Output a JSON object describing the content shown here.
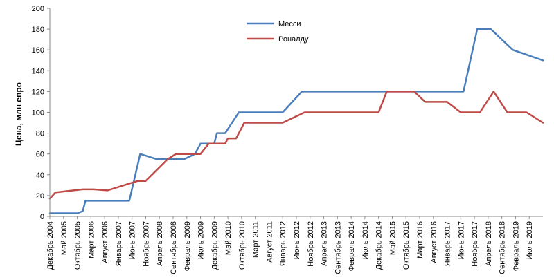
{
  "chart_data": {
    "type": "line",
    "title": "",
    "xlabel": "",
    "ylabel": "Цена, млн евро",
    "ylim": [
      0,
      200
    ],
    "yticks": [
      0,
      20,
      40,
      60,
      80,
      100,
      120,
      140,
      160,
      180,
      200
    ],
    "grid": false,
    "legend_position": "top-center",
    "x_range": [
      "2004-12",
      "2019-12"
    ],
    "x_tick_labels": [
      {
        "date": "2004-12",
        "label": "Декабрь 2004"
      },
      {
        "date": "2005-05",
        "label": "Май 2005"
      },
      {
        "date": "2005-10",
        "label": "Октябрь 2005"
      },
      {
        "date": "2006-03",
        "label": "Март 2006"
      },
      {
        "date": "2006-08",
        "label": "Август 2006"
      },
      {
        "date": "2007-01",
        "label": "Январь 2007"
      },
      {
        "date": "2007-06",
        "label": "Июнь 2007"
      },
      {
        "date": "2007-11",
        "label": "Ноябрь 2007"
      },
      {
        "date": "2008-04",
        "label": "Апрель 2008"
      },
      {
        "date": "2008-09",
        "label": "Сентябрь 2008"
      },
      {
        "date": "2009-02",
        "label": "Февраль 2009"
      },
      {
        "date": "2009-07",
        "label": "Июль 2009"
      },
      {
        "date": "2009-12",
        "label": "Декабрь 2009"
      },
      {
        "date": "2010-05",
        "label": "Май 2010"
      },
      {
        "date": "2010-10",
        "label": "Октябрь 2010"
      },
      {
        "date": "2011-03",
        "label": "Март 2011"
      },
      {
        "date": "2011-08",
        "label": "Август 2011"
      },
      {
        "date": "2012-01",
        "label": "Январь 2012"
      },
      {
        "date": "2012-06",
        "label": "Июнь 2012"
      },
      {
        "date": "2012-11",
        "label": "Ноябрь 2012"
      },
      {
        "date": "2013-04",
        "label": "Апрель 2013"
      },
      {
        "date": "2013-09",
        "label": "Сентябрь 2013"
      },
      {
        "date": "2014-02",
        "label": "Февраль 2014"
      },
      {
        "date": "2014-07",
        "label": "Июль 2014"
      },
      {
        "date": "2014-12",
        "label": "Декабрь 2014"
      },
      {
        "date": "2015-05",
        "label": "Май 2015"
      },
      {
        "date": "2015-10",
        "label": "Октябрь 2015"
      },
      {
        "date": "2016-03",
        "label": "Март 2016"
      },
      {
        "date": "2016-08",
        "label": "Август 2016"
      },
      {
        "date": "2017-01",
        "label": "Январь 2017"
      },
      {
        "date": "2017-06",
        "label": "Июнь 2017"
      },
      {
        "date": "2017-11",
        "label": "Ноябрь 2017"
      },
      {
        "date": "2018-04",
        "label": "Апрель 2018"
      },
      {
        "date": "2018-09",
        "label": "Сентябрь 2018"
      },
      {
        "date": "2019-02",
        "label": "Февраль 2019"
      },
      {
        "date": "2019-07",
        "label": "Июль 2019"
      }
    ],
    "series": [
      {
        "name": "Месси",
        "color": "#4a7ebb",
        "points": [
          [
            "2004-12",
            3
          ],
          [
            "2005-10",
            3
          ],
          [
            "2005-12",
            5
          ],
          [
            "2006-01",
            15
          ],
          [
            "2007-05",
            15
          ],
          [
            "2007-09",
            60
          ],
          [
            "2008-03",
            55
          ],
          [
            "2009-01",
            55
          ],
          [
            "2009-05",
            60
          ],
          [
            "2009-07",
            70
          ],
          [
            "2009-12",
            70
          ],
          [
            "2010-01",
            80
          ],
          [
            "2010-04",
            80
          ],
          [
            "2010-09",
            100
          ],
          [
            "2012-01",
            100
          ],
          [
            "2012-08",
            120
          ],
          [
            "2017-07",
            120
          ],
          [
            "2017-12",
            180
          ],
          [
            "2018-05",
            180
          ],
          [
            "2019-01",
            160
          ],
          [
            "2019-12",
            150
          ]
        ]
      },
      {
        "name": "Роналду",
        "color": "#be4b48",
        "points": [
          [
            "2004-12",
            17
          ],
          [
            "2005-02",
            23
          ],
          [
            "2005-12",
            26
          ],
          [
            "2006-04",
            26
          ],
          [
            "2006-09",
            25
          ],
          [
            "2007-08",
            34
          ],
          [
            "2007-11",
            34
          ],
          [
            "2008-07",
            55
          ],
          [
            "2008-10",
            60
          ],
          [
            "2009-07",
            60
          ],
          [
            "2009-10",
            70
          ],
          [
            "2010-04",
            70
          ],
          [
            "2010-05",
            75
          ],
          [
            "2010-08",
            75
          ],
          [
            "2010-11",
            90
          ],
          [
            "2012-01",
            90
          ],
          [
            "2012-09",
            100
          ],
          [
            "2014-12",
            100
          ],
          [
            "2015-03",
            120
          ],
          [
            "2016-01",
            120
          ],
          [
            "2016-05",
            110
          ],
          [
            "2017-01",
            110
          ],
          [
            "2017-06",
            100
          ],
          [
            "2018-01",
            100
          ],
          [
            "2018-06",
            120
          ],
          [
            "2018-11",
            100
          ],
          [
            "2019-06",
            100
          ],
          [
            "2019-12",
            90
          ]
        ]
      }
    ]
  }
}
